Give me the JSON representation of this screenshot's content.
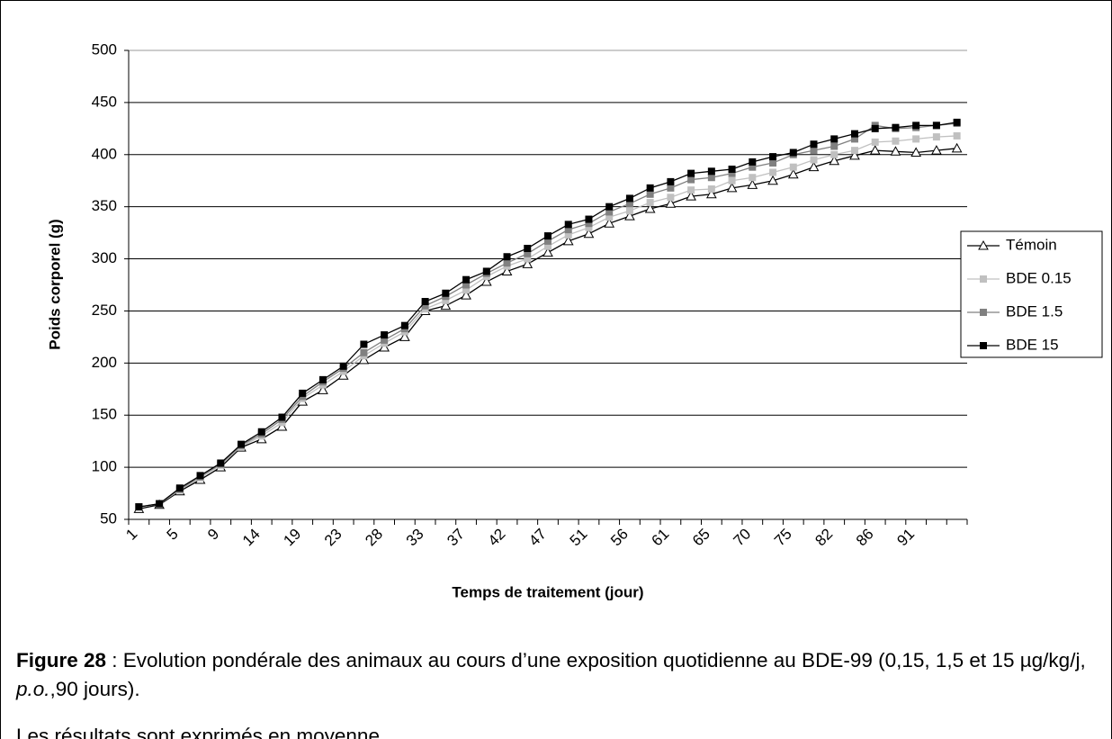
{
  "chart_data": {
    "type": "line",
    "y_label": "Poids corporel (g)",
    "x_label": "Temps de traitement (jour)",
    "categories": [
      "1",
      null,
      "5",
      null,
      "9",
      null,
      "14",
      null,
      "19",
      null,
      "23",
      null,
      "28",
      null,
      "33",
      null,
      "37",
      null,
      "42",
      null,
      "47",
      null,
      "51",
      null,
      "56",
      null,
      "61",
      null,
      "65",
      null,
      "70",
      null,
      "75",
      null,
      "82",
      null,
      "86",
      null,
      "91",
      null,
      null
    ],
    "ylim": [
      50,
      500
    ],
    "yticks": [
      50,
      100,
      150,
      200,
      250,
      300,
      350,
      400,
      450,
      500
    ],
    "grid": true,
    "legend": "right",
    "series": [
      {
        "name": "Témoin",
        "color": "#000000",
        "marker": "triangle",
        "values": [
          60,
          64,
          77,
          88,
          100,
          119,
          127,
          139,
          163,
          174,
          188,
          203,
          215,
          225,
          250,
          255,
          265,
          278,
          288,
          295,
          306,
          317,
          324,
          334,
          341,
          348,
          353,
          360,
          362,
          368,
          371,
          375,
          381,
          388,
          394,
          399,
          404,
          403,
          402,
          404,
          406
        ]
      },
      {
        "name": "BDE 0.15",
        "color": "#c0c0c0",
        "marker": "square",
        "values": [
          62,
          65,
          78,
          90,
          102,
          120,
          130,
          143,
          166,
          179,
          192,
          207,
          219,
          230,
          252,
          260,
          270,
          283,
          293,
          300,
          312,
          323,
          330,
          340,
          346,
          354,
          359,
          366,
          367,
          375,
          378,
          383,
          388,
          395,
          400,
          404,
          412,
          413,
          415,
          417,
          418
        ]
      },
      {
        "name": "BDE 1.5",
        "color": "#808080",
        "marker": "square",
        "values": [
          62,
          65,
          79,
          91,
          103,
          121,
          132,
          146,
          168,
          182,
          195,
          210,
          222,
          233,
          255,
          264,
          275,
          286,
          296,
          305,
          317,
          328,
          334,
          345,
          353,
          362,
          368,
          376,
          378,
          382,
          388,
          392,
          400,
          404,
          408,
          415,
          428,
          425,
          426,
          428,
          430
        ]
      },
      {
        "name": "BDE 15",
        "color": "#000000",
        "marker": "square",
        "values": [
          62,
          65,
          80,
          92,
          104,
          122,
          134,
          148,
          171,
          184,
          197,
          218,
          227,
          236,
          259,
          267,
          280,
          288,
          302,
          310,
          322,
          333,
          338,
          350,
          358,
          368,
          374,
          382,
          384,
          386,
          393,
          398,
          402,
          410,
          415,
          420,
          425,
          426,
          428,
          428,
          431
        ]
      }
    ]
  },
  "caption": {
    "label": "Figure 28",
    "parts": [
      " : Evolution pondérale des animaux au cours d’une exposition quotidienne au BDE-99 (0,15, 1,5 et 15 µg/kg/j, ",
      "p.o.",
      ",90 jours)."
    ]
  },
  "note": "Les résultats sont exprimés en moyenne."
}
